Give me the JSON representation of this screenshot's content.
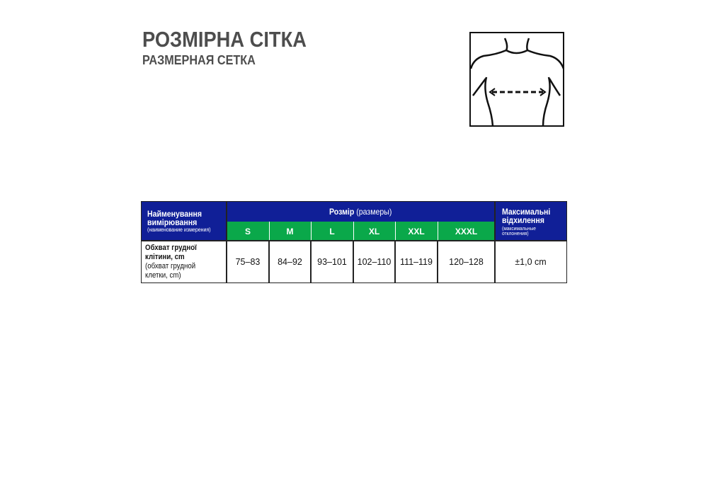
{
  "title": "РОЗМІРНА СІТКА",
  "subtitle": "РАЗМЕРНАЯ СЕТКА",
  "figure": {
    "icon": "chest-measurement-diagram"
  },
  "table": {
    "name_header": {
      "main": "Найменування вимірювання",
      "sub": "(наименование измерения)"
    },
    "size_header": {
      "main": "Розмір",
      "sub": "(размеры)"
    },
    "dev_header": {
      "main": "Максимальні відхилення",
      "sub": "(максимальные отклонения)"
    },
    "sizes": [
      "S",
      "M",
      "L",
      "XL",
      "XXL",
      "XXXL"
    ],
    "rows": [
      {
        "name": "Обхват грудної клітини, cm",
        "name_sub": "(обхват грудной клетки, cm)",
        "values": [
          "75–83",
          "84–92",
          "93–101",
          "102–110",
          "111–119",
          "120–128"
        ],
        "deviation": "±1,0 cm"
      }
    ]
  },
  "colors": {
    "header_blue": "#101f97",
    "size_green": "#0aa84a",
    "title_gray": "#4d4d4d"
  }
}
